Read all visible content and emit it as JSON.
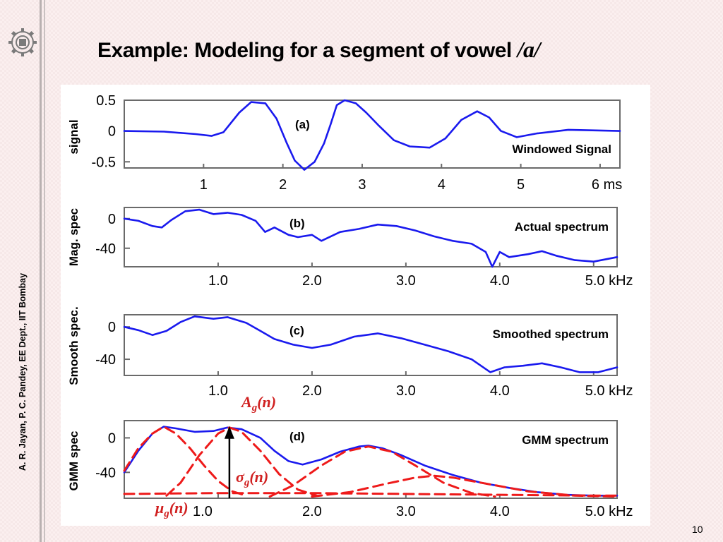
{
  "slide": {
    "title_prefix": "Example: Modeling for a segment of vowel ",
    "title_vowel": "/a/",
    "side_text": "A. R. Jayan, P. C. Pandey, EE Dept.,  IIT Bombay",
    "page_number": "10"
  },
  "annotations": {
    "A_main": "A",
    "A_sub": "g",
    "A_arg": "(n)",
    "sigma_main": "σ",
    "sigma_sub": "g",
    "sigma_arg": "(n)",
    "mu_main": "μ",
    "mu_sub": "g",
    "mu_arg": "(n)"
  },
  "colors": {
    "signal": "#1a1aee",
    "gmm": "#ee1a1a",
    "annotation": "#d02020",
    "frame": "#6a6a6a"
  },
  "chart_data": [
    {
      "id": "a",
      "type": "line",
      "panel_label": "(a)",
      "caption": "Windowed Signal",
      "ylabel": "signal",
      "xlim": [
        0,
        6.25
      ],
      "ylim": [
        -0.6,
        0.5
      ],
      "yticks": [
        0.5,
        0,
        -0.5
      ],
      "ytick_labels": [
        "0.5",
        "0",
        "-0.5"
      ],
      "xticks": [
        1,
        2,
        3,
        4,
        5,
        6
      ],
      "xtick_labels": [
        "1",
        "2",
        "3",
        "4",
        "5",
        "6 ms"
      ],
      "series": [
        {
          "x": [
            0,
            0.5,
            0.9,
            1.1,
            1.25,
            1.45,
            1.6,
            1.78,
            1.92,
            2.05,
            2.15,
            2.27,
            2.4,
            2.52,
            2.6,
            2.68,
            2.78,
            2.92,
            3.05,
            3.2,
            3.4,
            3.6,
            3.85,
            4.05,
            4.25,
            4.45,
            4.6,
            4.75,
            4.95,
            5.2,
            5.6,
            6.25
          ],
          "y": [
            0,
            -0.01,
            -0.05,
            -0.08,
            -0.02,
            0.3,
            0.47,
            0.45,
            0.2,
            -0.2,
            -0.48,
            -0.63,
            -0.5,
            -0.2,
            0.1,
            0.42,
            0.5,
            0.45,
            0.3,
            0.1,
            -0.15,
            -0.25,
            -0.27,
            -0.12,
            0.18,
            0.32,
            0.22,
            0.0,
            -0.1,
            -0.04,
            0.02,
            0.0
          ]
        }
      ]
    },
    {
      "id": "b",
      "type": "line",
      "panel_label": "(b)",
      "caption": "Actual spectrum",
      "ylabel": "Mag. spec",
      "xlim": [
        0,
        5.25
      ],
      "ylim": [
        -65,
        15
      ],
      "yticks": [
        0,
        -40
      ],
      "ytick_labels": [
        "0",
        "-40"
      ],
      "xticks": [
        1,
        2,
        3,
        4,
        5
      ],
      "xtick_labels": [
        "1.0",
        "2.0",
        "3.0",
        "4.0",
        "5.0 kHz"
      ],
      "series": [
        {
          "x": [
            0,
            0.15,
            0.3,
            0.4,
            0.5,
            0.65,
            0.8,
            0.95,
            1.1,
            1.25,
            1.4,
            1.5,
            1.6,
            1.75,
            1.85,
            2.0,
            2.1,
            2.3,
            2.5,
            2.7,
            2.9,
            3.1,
            3.3,
            3.5,
            3.7,
            3.85,
            3.92,
            4.0,
            4.1,
            4.3,
            4.45,
            4.6,
            4.8,
            5.0,
            5.25
          ],
          "y": [
            0,
            -3,
            -10,
            -12,
            -2,
            10,
            12,
            6,
            8,
            5,
            -3,
            -18,
            -12,
            -22,
            -25,
            -22,
            -30,
            -18,
            -14,
            -8,
            -10,
            -16,
            -24,
            -30,
            -34,
            -45,
            -65,
            -45,
            -52,
            -48,
            -44,
            -50,
            -56,
            -58,
            -52
          ]
        }
      ]
    },
    {
      "id": "c",
      "type": "line",
      "panel_label": "(c)",
      "caption": "Smoothed spectrum",
      "ylabel": "Smooth spec.",
      "xlim": [
        0,
        5.25
      ],
      "ylim": [
        -60,
        15
      ],
      "yticks": [
        0,
        -40
      ],
      "ytick_labels": [
        "0",
        "-40"
      ],
      "xticks": [
        1,
        2,
        3,
        4,
        5
      ],
      "xtick_labels": [
        "1.0",
        "2.0",
        "3.0",
        "4.0",
        "5.0 kHz"
      ],
      "series": [
        {
          "x": [
            0,
            0.15,
            0.3,
            0.45,
            0.6,
            0.75,
            0.95,
            1.1,
            1.3,
            1.45,
            1.6,
            1.8,
            2.0,
            2.2,
            2.45,
            2.7,
            2.95,
            3.2,
            3.45,
            3.7,
            3.9,
            4.05,
            4.25,
            4.45,
            4.65,
            4.85,
            5.05,
            5.25
          ],
          "y": [
            0,
            -4,
            -10,
            -5,
            6,
            13,
            10,
            12,
            5,
            -5,
            -15,
            -22,
            -26,
            -22,
            -12,
            -8,
            -14,
            -22,
            -30,
            -40,
            -56,
            -50,
            -48,
            -45,
            -50,
            -56,
            -56,
            -50
          ]
        }
      ]
    },
    {
      "id": "d",
      "type": "line",
      "panel_label": "(d)",
      "caption": "GMM spectrum",
      "ylabel": "GMM spec",
      "xlim": [
        0,
        5.25
      ],
      "ylim": [
        -70,
        20
      ],
      "yticks": [
        0,
        -40
      ],
      "ytick_labels": [
        "0",
        "-40"
      ],
      "xticks": [
        2,
        3,
        4,
        5
      ],
      "xtick_labels": [
        "2.0",
        "3.0",
        "4.0",
        "5.0 kHz"
      ],
      "xtick_labels_extra": [
        {
          "x": 1,
          "label": "1.0"
        }
      ],
      "series": [
        {
          "style": "solid",
          "x": [
            0,
            0.15,
            0.3,
            0.42,
            0.55,
            0.75,
            0.95,
            1.1,
            1.25,
            1.45,
            1.6,
            1.75,
            1.9,
            2.1,
            2.3,
            2.5,
            2.6,
            2.75,
            2.95,
            3.2,
            3.5,
            3.8,
            4.1,
            4.4,
            4.7,
            5.0,
            5.25
          ],
          "y": [
            -40,
            -15,
            5,
            13,
            11,
            7,
            8,
            12,
            10,
            0,
            -15,
            -27,
            -31,
            -25,
            -16,
            -10,
            -9,
            -12,
            -20,
            -32,
            -43,
            -52,
            -58,
            -63,
            -66,
            -67,
            -67
          ]
        },
        {
          "style": "dashed",
          "x": [
            0,
            0.15,
            0.3,
            0.42,
            0.55,
            0.7,
            0.85,
            1.0,
            1.15,
            1.3
          ],
          "y": [
            -38,
            -12,
            5,
            13,
            5,
            -12,
            -32,
            -50,
            -62,
            -67
          ]
        },
        {
          "style": "dashed",
          "x": [
            0.45,
            0.6,
            0.8,
            1.0,
            1.12,
            1.25,
            1.45,
            1.65,
            1.85,
            2.05
          ],
          "y": [
            -67,
            -52,
            -20,
            5,
            12,
            7,
            -15,
            -42,
            -60,
            -67
          ]
        },
        {
          "style": "dashed",
          "x": [
            1.55,
            1.8,
            2.1,
            2.35,
            2.6,
            2.85,
            3.1,
            3.4,
            3.7,
            3.95
          ],
          "y": [
            -68,
            -55,
            -32,
            -16,
            -10,
            -16,
            -32,
            -52,
            -64,
            -68
          ]
        },
        {
          "style": "dashed",
          "x": [
            2.0,
            2.4,
            2.8,
            3.1,
            3.3,
            3.5,
            3.9,
            4.3,
            4.8,
            5.25
          ],
          "y": [
            -68,
            -63,
            -53,
            -46,
            -44,
            -46,
            -54,
            -62,
            -67,
            -68
          ]
        },
        {
          "style": "dashed",
          "x": [
            0,
            1.0,
            2.0,
            3.0,
            4.0,
            5.0,
            5.25
          ],
          "y": [
            -65,
            -64,
            -64,
            -65,
            -66,
            -67,
            -67
          ]
        }
      ],
      "marker_x": 1.12,
      "marker_y_top": 12
    }
  ]
}
